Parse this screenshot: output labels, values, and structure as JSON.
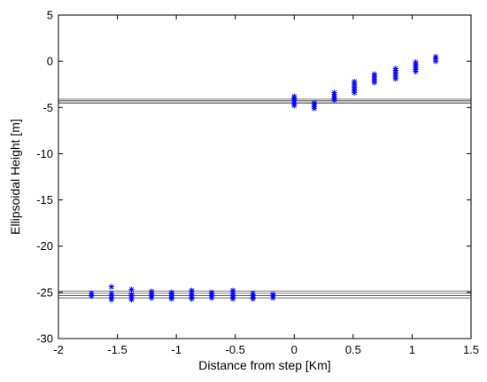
{
  "chart_data": {
    "type": "scatter",
    "title": "",
    "xlabel": "Distance from step [Km]",
    "ylabel": "Ellipsoidal Height [m]",
    "xlim": [
      -2,
      1.5
    ],
    "ylim": [
      -30,
      5
    ],
    "xticks": [
      -2,
      -1.5,
      -1,
      -0.5,
      0,
      0.5,
      1,
      1.5
    ],
    "yticks": [
      -30,
      -25,
      -20,
      -15,
      -10,
      -5,
      0,
      5
    ],
    "xtick_labels": [
      "-2",
      "-1.5",
      "-1",
      "-0.5",
      "0",
      "0.5",
      "1",
      "1.5"
    ],
    "ytick_labels": [
      "-30",
      "-25",
      "-20",
      "-15",
      "-10",
      "-5",
      "0",
      "5"
    ],
    "grid": false,
    "legend": "none",
    "marker": "star",
    "point_color": "#0000ff",
    "line_color": "#666666",
    "series": [
      {
        "x": [
          -1.72,
          -1.72,
          -1.55,
          -1.55,
          -1.55,
          -1.55,
          -1.55,
          -1.38,
          -1.38,
          -1.38,
          -1.38,
          -1.38,
          -1.21,
          -1.21,
          -1.21,
          -1.21,
          -1.04,
          -1.04,
          -1.04,
          -1.04,
          -0.87,
          -0.87,
          -0.87,
          -0.87,
          -0.87,
          -0.7,
          -0.7,
          -0.7,
          -0.7,
          -0.52,
          -0.52,
          -0.52,
          -0.52,
          -0.52,
          -0.35,
          -0.35,
          -0.35,
          -0.35,
          -0.18,
          -0.18,
          -0.18,
          0.0,
          0.0,
          0.0,
          0.0,
          0.0,
          0.0,
          0.17,
          0.17,
          0.17,
          0.17,
          0.34,
          0.34,
          0.34,
          0.34,
          0.34,
          0.51,
          0.51,
          0.51,
          0.51,
          0.51,
          0.68,
          0.68,
          0.68,
          0.68,
          0.86,
          0.86,
          0.86,
          0.86,
          0.86,
          1.03,
          1.03,
          1.03,
          1.03,
          1.03,
          1.2,
          1.2,
          1.2
        ],
        "y": [
          -25.1,
          -25.4,
          -24.4,
          -25.1,
          -25.3,
          -25.6,
          -25.8,
          -24.7,
          -25.2,
          -25.4,
          -25.6,
          -25.8,
          -24.9,
          -25.2,
          -25.4,
          -25.6,
          -25.0,
          -25.2,
          -25.5,
          -25.7,
          -24.8,
          -25.1,
          -25.3,
          -25.5,
          -25.7,
          -25.0,
          -25.2,
          -25.4,
          -25.6,
          -24.8,
          -25.1,
          -25.3,
          -25.5,
          -25.7,
          -25.1,
          -25.3,
          -25.5,
          -25.7,
          -25.2,
          -25.4,
          -25.6,
          -3.8,
          -4.0,
          -4.2,
          -4.4,
          -4.6,
          -4.8,
          -4.5,
          -4.7,
          -4.9,
          -5.1,
          -3.4,
          -3.6,
          -3.8,
          -4.0,
          -4.2,
          -2.2,
          -2.5,
          -2.8,
          -3.1,
          -3.4,
          -1.4,
          -1.7,
          -2.0,
          -2.3,
          -0.8,
          -1.0,
          -1.3,
          -1.6,
          -1.9,
          -0.1,
          -0.4,
          -0.6,
          -0.9,
          -1.1,
          0.5,
          0.3,
          0.0
        ]
      }
    ],
    "reference_lines": [
      -4.1,
      -4.25,
      -4.4,
      -4.55,
      -24.85,
      -25.1,
      -25.35,
      -25.6
    ]
  }
}
